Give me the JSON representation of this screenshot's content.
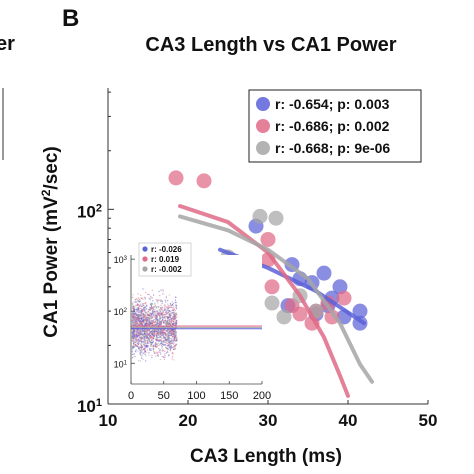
{
  "figure": {
    "panel_letter": "B",
    "left_panel_title_fragment": "er"
  },
  "chart_data": {
    "type": "scatter",
    "title": "CA3 Length vs CA1 Power",
    "xlabel": "CA3 Length (ms)",
    "ylabel_main": "CA1 Power (mV",
    "ylabel_sup": "2",
    "ylabel_tail": "/sec)",
    "xlim": [
      10,
      50
    ],
    "ylim": [
      10,
      420
    ],
    "yscale": "log",
    "xticks": [
      10,
      20,
      30,
      40,
      50
    ],
    "yticks": [
      {
        "value": 10,
        "base": "10",
        "exp": "1"
      },
      {
        "value": 100,
        "base": "10",
        "exp": "2"
      }
    ],
    "legend": {
      "placement": "top-right",
      "entries": [
        {
          "label": "r: -0.654; p: 0.003",
          "color": "#5b62d8"
        },
        {
          "label": "r: -0.686; p: 0.002",
          "color": "#e06a87"
        },
        {
          "label": "r: -0.668; p: 9e-06",
          "color": "#a6a6a6"
        }
      ]
    },
    "series": [
      {
        "color": "#5b62d8",
        "points": [
          [
            28.5,
            82
          ],
          [
            33,
            52
          ],
          [
            35.5,
            42
          ],
          [
            37,
            47
          ],
          [
            38,
            35
          ],
          [
            39,
            40
          ],
          [
            41.5,
            30
          ],
          [
            34,
            44
          ],
          [
            32.5,
            32
          ],
          [
            37.5,
            32
          ],
          [
            39.5,
            28
          ],
          [
            41.5,
            26
          ],
          [
            36,
            29
          ]
        ],
        "fit": [
          [
            24,
            62
          ],
          [
            30,
            50
          ],
          [
            36,
            38
          ],
          [
            42,
            26
          ]
        ]
      },
      {
        "color": "#e06a87",
        "points": [
          [
            18.5,
            145
          ],
          [
            22,
            140
          ],
          [
            30,
            70
          ],
          [
            30.5,
            40
          ],
          [
            33,
            32
          ],
          [
            34,
            29
          ],
          [
            35.5,
            26
          ],
          [
            36,
            30
          ],
          [
            37.5,
            33
          ],
          [
            39.5,
            35
          ],
          [
            30,
            55
          ],
          [
            27,
            48
          ],
          [
            38,
            28
          ]
        ],
        "fit": [
          [
            19,
            104
          ],
          [
            25,
            86
          ],
          [
            30,
            60
          ],
          [
            34,
            36
          ],
          [
            37,
            22
          ],
          [
            39,
            14
          ],
          [
            40,
            11
          ]
        ]
      },
      {
        "color": "#a6a6a6",
        "points": [
          [
            29,
            92
          ],
          [
            31,
            90
          ],
          [
            25,
            57
          ],
          [
            26,
            52
          ],
          [
            30.5,
            33
          ],
          [
            32,
            28
          ],
          [
            36,
            30
          ],
          [
            34,
            36
          ]
        ],
        "fit": [
          [
            19,
            92
          ],
          [
            25,
            78
          ],
          [
            30,
            62
          ],
          [
            35,
            44
          ],
          [
            39,
            26
          ],
          [
            41.5,
            16
          ],
          [
            43,
            13
          ]
        ]
      }
    ],
    "inset": {
      "xlim": [
        0,
        200
      ],
      "ylim": [
        4,
        1200
      ],
      "yscale": "log",
      "xticks": [
        0,
        50,
        100,
        150,
        200
      ],
      "yticks": [
        {
          "value": 10,
          "base": "10",
          "exp": "1"
        },
        {
          "value": 100,
          "base": "10",
          "exp": "2"
        },
        {
          "value": 1000,
          "base": "10",
          "exp": "3"
        }
      ],
      "legend": {
        "placement": "top-left",
        "entries": [
          {
            "label": "r: -0.026",
            "color": "#5b62d8"
          },
          {
            "label": "r: 0.019",
            "color": "#e06a87"
          },
          {
            "label": "r: -0.002",
            "color": "#a6a6a6"
          }
        ]
      },
      "cloud": {
        "x_range": [
          2,
          70
        ],
        "y_center": 50,
        "spread_decades": 0.45
      },
      "fits": [
        {
          "color": "#5b62d8",
          "y": 46
        },
        {
          "color": "#e06a87",
          "y": 52
        },
        {
          "color": "#a6a6a6",
          "y": 49
        }
      ]
    }
  }
}
